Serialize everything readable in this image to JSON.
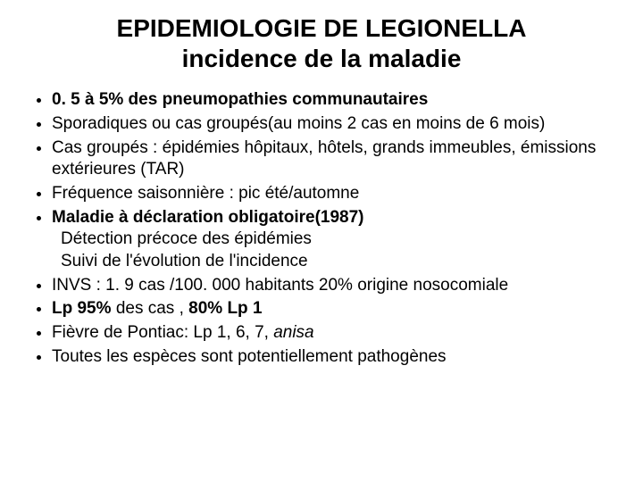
{
  "title_line1": "EPIDEMIOLOGIE DE LEGIONELLA",
  "title_line2": "incidence de la maladie",
  "bullets": {
    "b1": "0. 5 à 5% des pneumopathies communautaires",
    "b2": "Sporadiques ou cas groupés(au moins 2 cas en moins de 6 mois)",
    "b3": "Cas groupés : épidémies hôpitaux, hôtels, grands immeubles, émissions extérieures  (TAR)",
    "b4": " Fréquence saisonnière : pic été/automne",
    "b5_bold": "Maladie à déclaration obligatoire(1987)",
    "b5_sub1": "Détection précoce des épidémies",
    "b5_sub2": "Suivi de l'évolution de l'incidence",
    "b6": "INVS : 1. 9 cas /100. 000 habitants 20% origine nosocomiale",
    "b7_part1": "Lp 95% ",
    "b7_part2": "des cas , ",
    "b7_part3": "80% Lp 1",
    "b8_part1": "Fièvre de Pontiac: Lp 1, 6, 7, ",
    "b8_part2": "anisa",
    "b9": "Toutes les espèces sont potentiellement pathogènes"
  },
  "styling": {
    "background_color": "#ffffff",
    "text_color": "#000000",
    "title_fontsize": 28,
    "body_fontsize": 19,
    "font_family": "Arial"
  }
}
